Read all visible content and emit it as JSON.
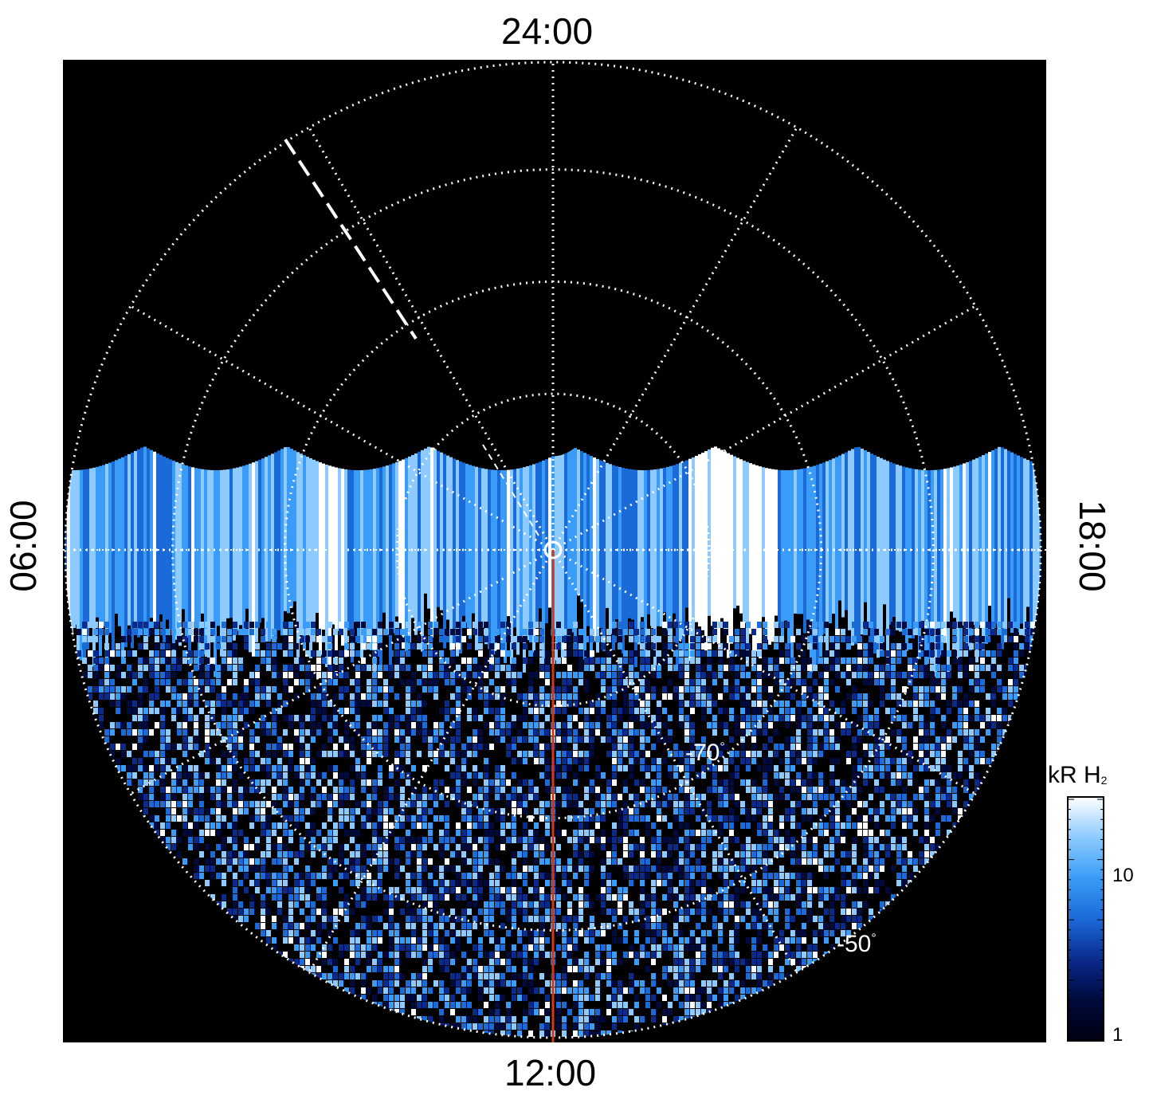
{
  "local_time_labels": {
    "top": "24:00",
    "bottom": "12:00",
    "left": "06:00",
    "right": "18:00"
  },
  "latitude_labels": {
    "inner": "-70",
    "outer": "-50",
    "degree_symbol": "°"
  },
  "colorbar": {
    "title_main": "kR H",
    "title_sub": "2",
    "tick_labels": [
      "10",
      "1"
    ],
    "colors": [
      "#000010",
      "#000a3c",
      "#0a2a8c",
      "#1a6ad8",
      "#3a9cf6",
      "#8ccaff",
      "#ffffff"
    ],
    "scale": "log"
  },
  "colors": {
    "background": "#000000",
    "grid": "#ffffff",
    "meridian_line": "#d03a14",
    "canvas": "#ffffff"
  }
}
